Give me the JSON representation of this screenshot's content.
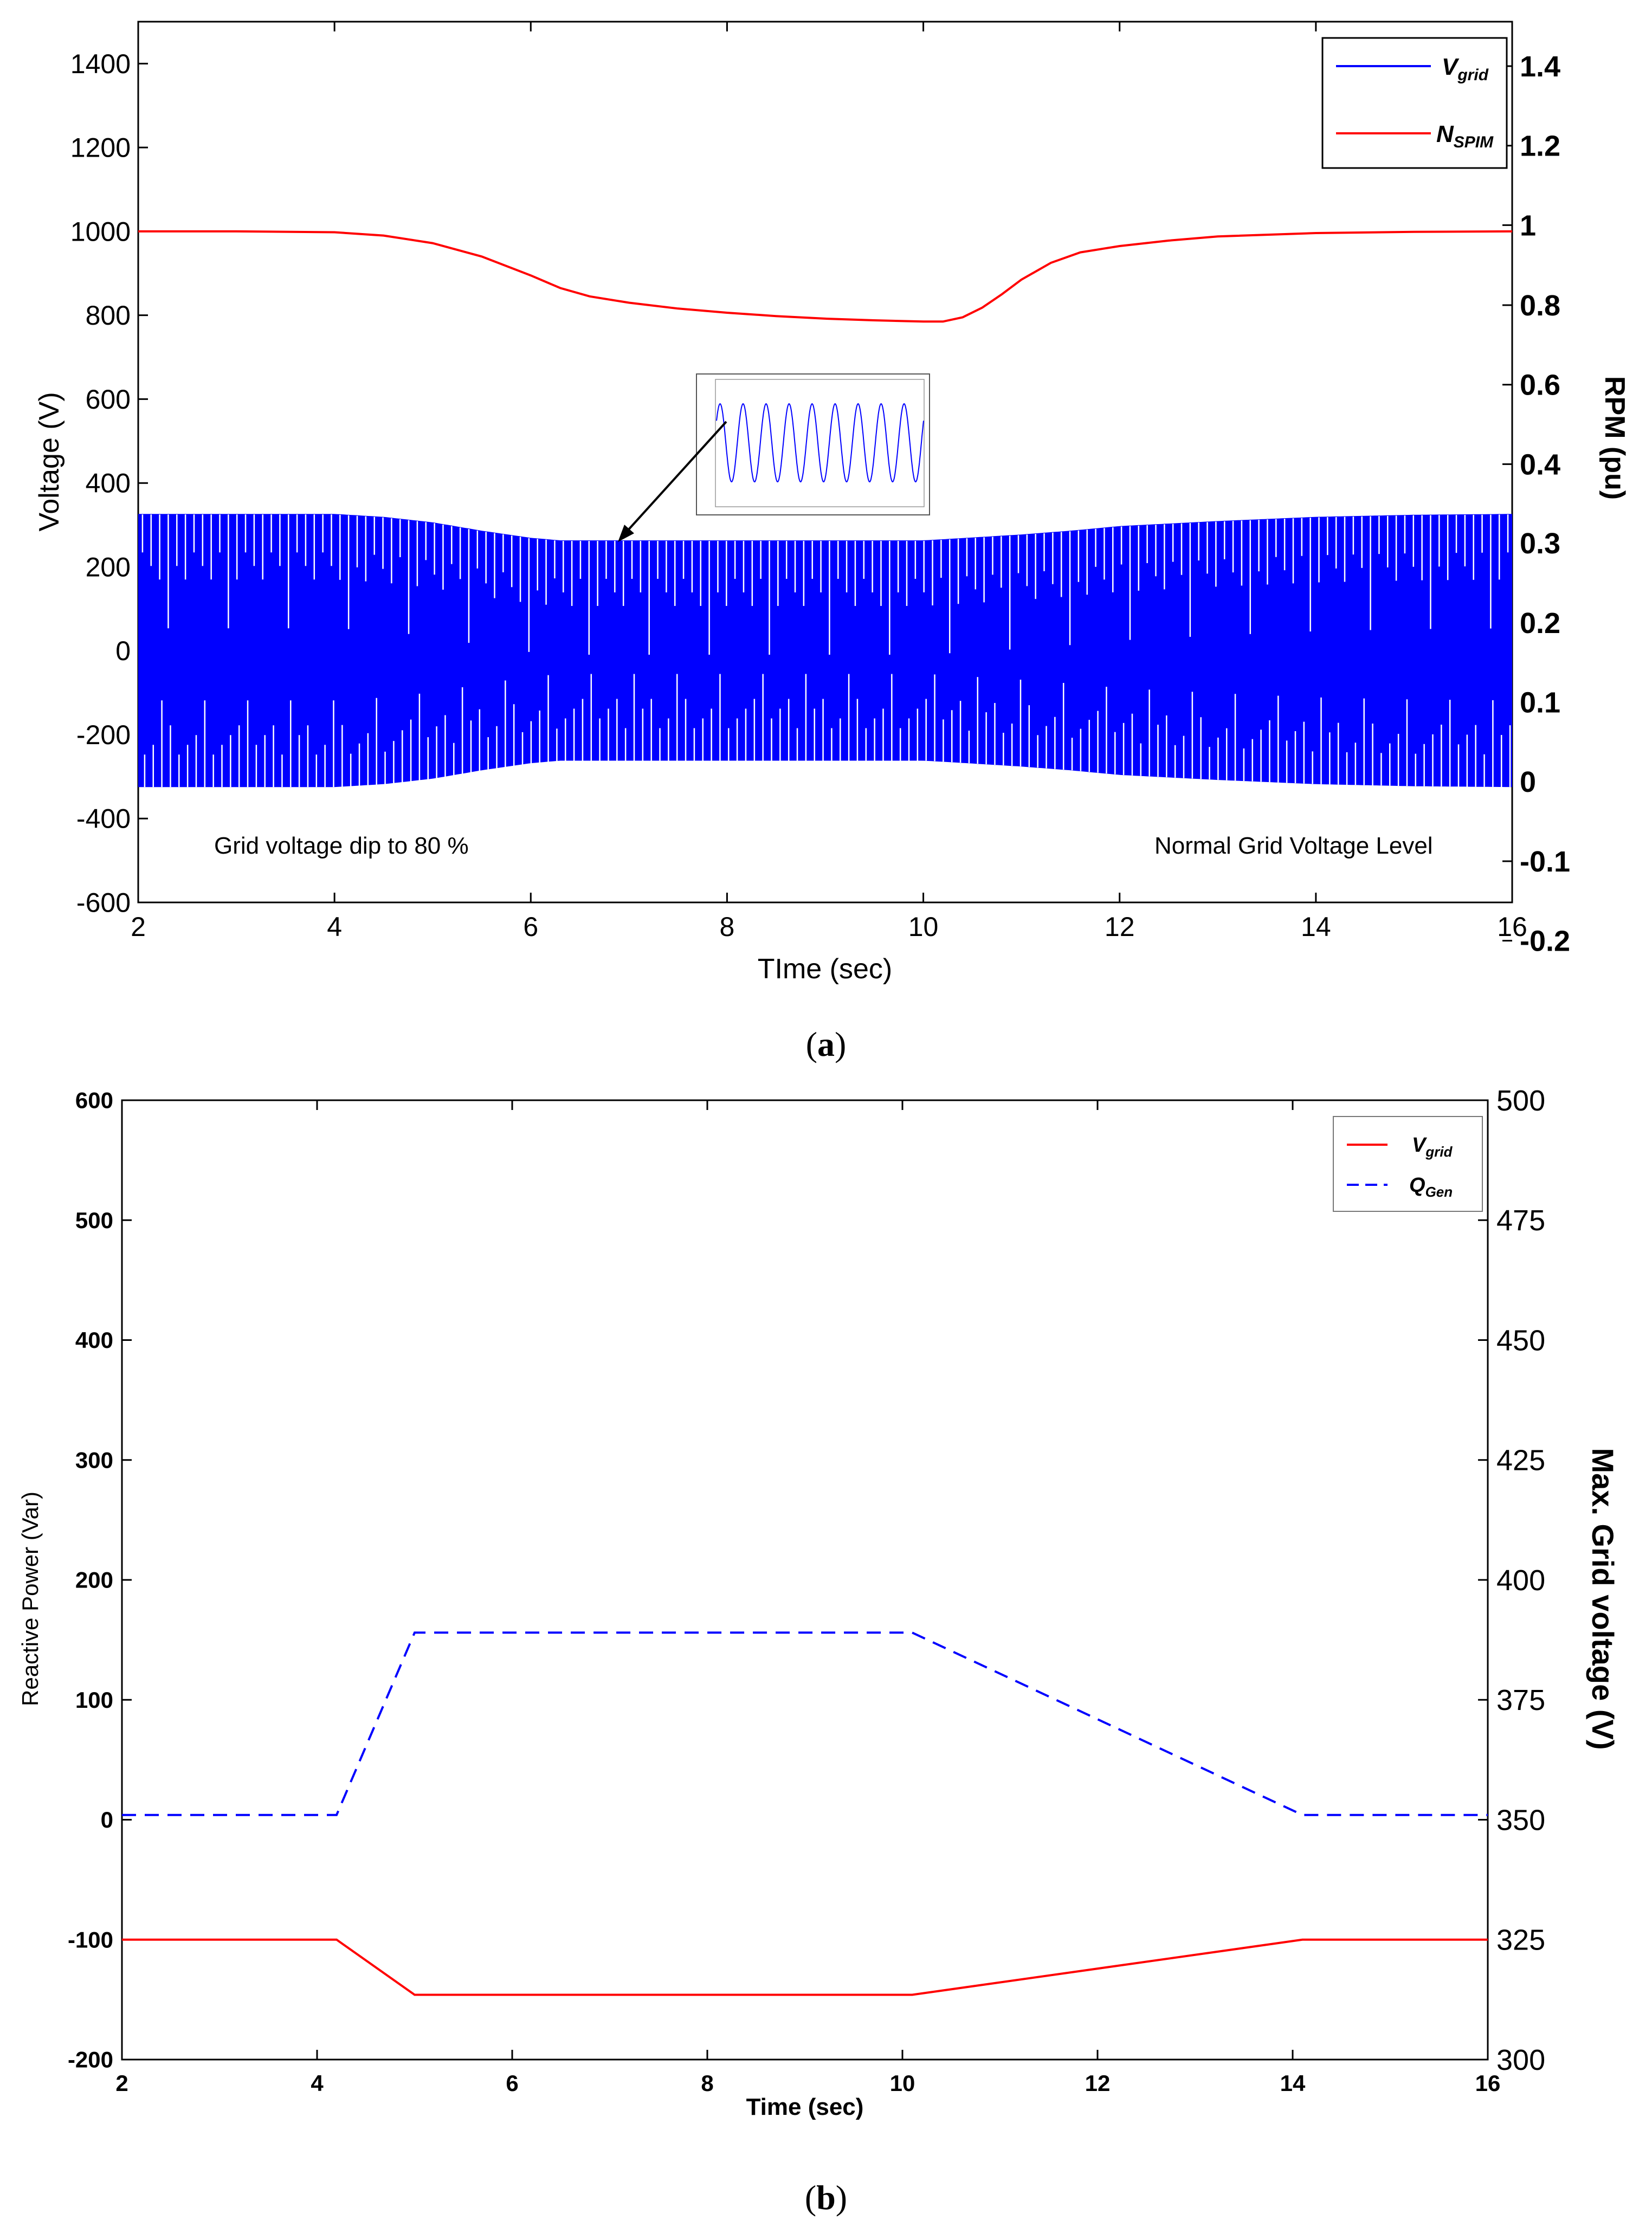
{
  "chart_data": [
    {
      "type": "line",
      "panel": "a",
      "caption_letter": "a",
      "xlabel": "TIme (sec)",
      "ylabel_left": "Voltage (V)",
      "ylabel_right": "RPM (pu)",
      "xlim": [
        2,
        16
      ],
      "ylim_left": [
        -600,
        1500
      ],
      "ylim_right": [
        -0.2,
        1.5
      ],
      "xticks": [
        2,
        4,
        6,
        8,
        10,
        12,
        14,
        16
      ],
      "yticks_left": [
        -600,
        -400,
        -200,
        0,
        200,
        400,
        600,
        800,
        1000,
        1200,
        1400
      ],
      "yticks_right": [
        -0.2,
        -0.1,
        0,
        0.1,
        0.2,
        0.3,
        0.4,
        0.6,
        0.8,
        1,
        1.2,
        1.4
      ],
      "legend": {
        "placement": "top-right",
        "entries": [
          {
            "main": "V",
            "sub": "grid",
            "color": "#0000ff",
            "style": "solid"
          },
          {
            "main": "N",
            "sub": "SPIM",
            "color": "#ff0000",
            "style": "solid"
          }
        ]
      },
      "series": [
        {
          "name": "Vgrid envelope",
          "axis": "left",
          "color": "#0000ff",
          "kind": "oscillation-envelope",
          "x": [
            2,
            4,
            4.5,
            5,
            5.5,
            6,
            6.3,
            7,
            8,
            9,
            10,
            10.3,
            11,
            11.5,
            12,
            13,
            14,
            15,
            16
          ],
          "amplitude": [
            325,
            325,
            318,
            305,
            285,
            268,
            262,
            262,
            262,
            262,
            262,
            266,
            276,
            285,
            296,
            308,
            318,
            323,
            325
          ]
        },
        {
          "name": "NSPIM",
          "axis": "left",
          "color": "#ff0000",
          "x": [
            2,
            3,
            4,
            4.5,
            5,
            5.5,
            6,
            6.3,
            6.6,
            7,
            7.5,
            8,
            8.5,
            9,
            9.5,
            10,
            10.2,
            10.4,
            10.6,
            10.8,
            11,
            11.3,
            11.6,
            12,
            12.5,
            13,
            14,
            15,
            16
          ],
          "y": [
            1000,
            1000,
            998,
            990,
            972,
            940,
            895,
            865,
            845,
            830,
            816,
            806,
            798,
            792,
            788,
            785,
            785,
            795,
            818,
            850,
            885,
            925,
            950,
            965,
            978,
            988,
            996,
            999,
            1000
          ]
        }
      ],
      "annotations": [
        {
          "text": "Grid voltage dip to 80 %"
        },
        {
          "text": "Normal Grid Voltage Level"
        }
      ],
      "inset": {
        "description": "zoomed sinusoid",
        "color": "#0000ff",
        "cycles": 9,
        "arrow_to_x": 6.9,
        "arrow_to_y": 265
      }
    },
    {
      "type": "line",
      "panel": "b",
      "caption_letter": "b",
      "xlabel": "Time (sec)",
      "ylabel_left": "Reactive Power (Var)",
      "ylabel_right": "Max. Grid voltage (V)",
      "xlim": [
        2,
        16
      ],
      "ylim_left": [
        -200,
        600
      ],
      "ylim_right": [
        300,
        500
      ],
      "xticks": [
        2,
        4,
        6,
        8,
        10,
        12,
        14,
        16
      ],
      "yticks_left": [
        -200,
        -100,
        0,
        100,
        200,
        300,
        400,
        500,
        600
      ],
      "yticks_right": [
        300,
        325,
        350,
        375,
        400,
        425,
        450,
        475,
        500
      ],
      "legend": {
        "placement": "top-right",
        "entries": [
          {
            "main": "V",
            "sub": "grid",
            "color": "#ff0000",
            "style": "solid"
          },
          {
            "main": "Q",
            "sub": "Gen",
            "color": "#0000ff",
            "style": "dashed"
          }
        ]
      },
      "series": [
        {
          "name": "Vgrid",
          "axis": "left",
          "color": "#ff0000",
          "style": "solid",
          "x": [
            2,
            4.2,
            5.0,
            10.1,
            14.1,
            16
          ],
          "y": [
            -100,
            -100,
            -146,
            -146,
            -100,
            -100
          ]
        },
        {
          "name": "QGen",
          "axis": "left",
          "color": "#0000ff",
          "style": "dashed",
          "x": [
            2,
            4.2,
            5.0,
            10.1,
            14.1,
            16
          ],
          "y": [
            4,
            4,
            156,
            156,
            4,
            4
          ]
        }
      ]
    }
  ]
}
